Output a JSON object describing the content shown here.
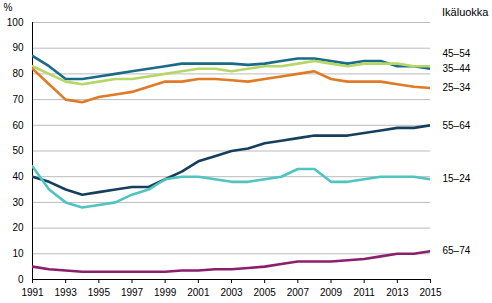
{
  "chart_data": {
    "type": "line",
    "y_label": "%",
    "legend_title": "Ikäluokka",
    "x": [
      1991,
      1992,
      1993,
      1994,
      1995,
      1996,
      1997,
      1998,
      1999,
      2000,
      2001,
      2002,
      2003,
      2004,
      2005,
      2006,
      2007,
      2008,
      2009,
      2010,
      2011,
      2012,
      2013,
      2014,
      2015
    ],
    "xlim": [
      1991,
      2015
    ],
    "xticks": [
      1991,
      1993,
      1995,
      1997,
      1999,
      2001,
      2003,
      2005,
      2007,
      2009,
      2011,
      2013,
      2015
    ],
    "ylim": [
      0,
      100
    ],
    "yticks": [
      0,
      10,
      20,
      30,
      40,
      50,
      60,
      70,
      80,
      90,
      100
    ],
    "grid": true,
    "series": [
      {
        "name": "35–44",
        "color": "#1b6a8a",
        "values": [
          87,
          83,
          78,
          78,
          79,
          80,
          81,
          82,
          83,
          84,
          84,
          84,
          84,
          83.5,
          84,
          85,
          86,
          86,
          85,
          84,
          85,
          85,
          83,
          83,
          82
        ]
      },
      {
        "name": "45–54",
        "color": "#b5d766",
        "values": [
          83,
          80,
          77,
          76,
          77,
          78,
          78,
          79,
          80,
          81,
          82,
          82,
          81,
          82,
          83,
          83,
          84,
          85,
          84,
          83,
          84,
          84,
          84,
          83,
          83
        ]
      },
      {
        "name": "25–34",
        "color": "#e07a26",
        "values": [
          82,
          76,
          70,
          69,
          71,
          72,
          73,
          75,
          77,
          77,
          78,
          78,
          77.5,
          77,
          78,
          79,
          80,
          81,
          78,
          77,
          77,
          77,
          76,
          75,
          74.5
        ]
      },
      {
        "name": "55–64",
        "color": "#163f5e",
        "values": [
          40,
          38,
          35,
          33,
          34,
          35,
          36,
          36,
          39,
          42,
          46,
          48,
          50,
          51,
          53,
          54,
          55,
          56,
          56,
          56,
          57,
          58,
          59,
          59,
          60
        ]
      },
      {
        "name": "15–24",
        "color": "#4fc4c0",
        "values": [
          44,
          35,
          30,
          28,
          29,
          30,
          33,
          35,
          39,
          40,
          40,
          39,
          38,
          38,
          39,
          40,
          43,
          43,
          38,
          38,
          39,
          40,
          40,
          40,
          39
        ]
      },
      {
        "name": "65–74",
        "color": "#8b1f6e",
        "values": [
          5,
          4,
          3.5,
          3,
          3,
          3,
          3,
          3,
          3,
          3.5,
          3.5,
          4,
          4,
          4.5,
          5,
          6,
          7,
          7,
          7,
          7.5,
          8,
          9,
          10,
          10,
          11
        ]
      }
    ]
  }
}
